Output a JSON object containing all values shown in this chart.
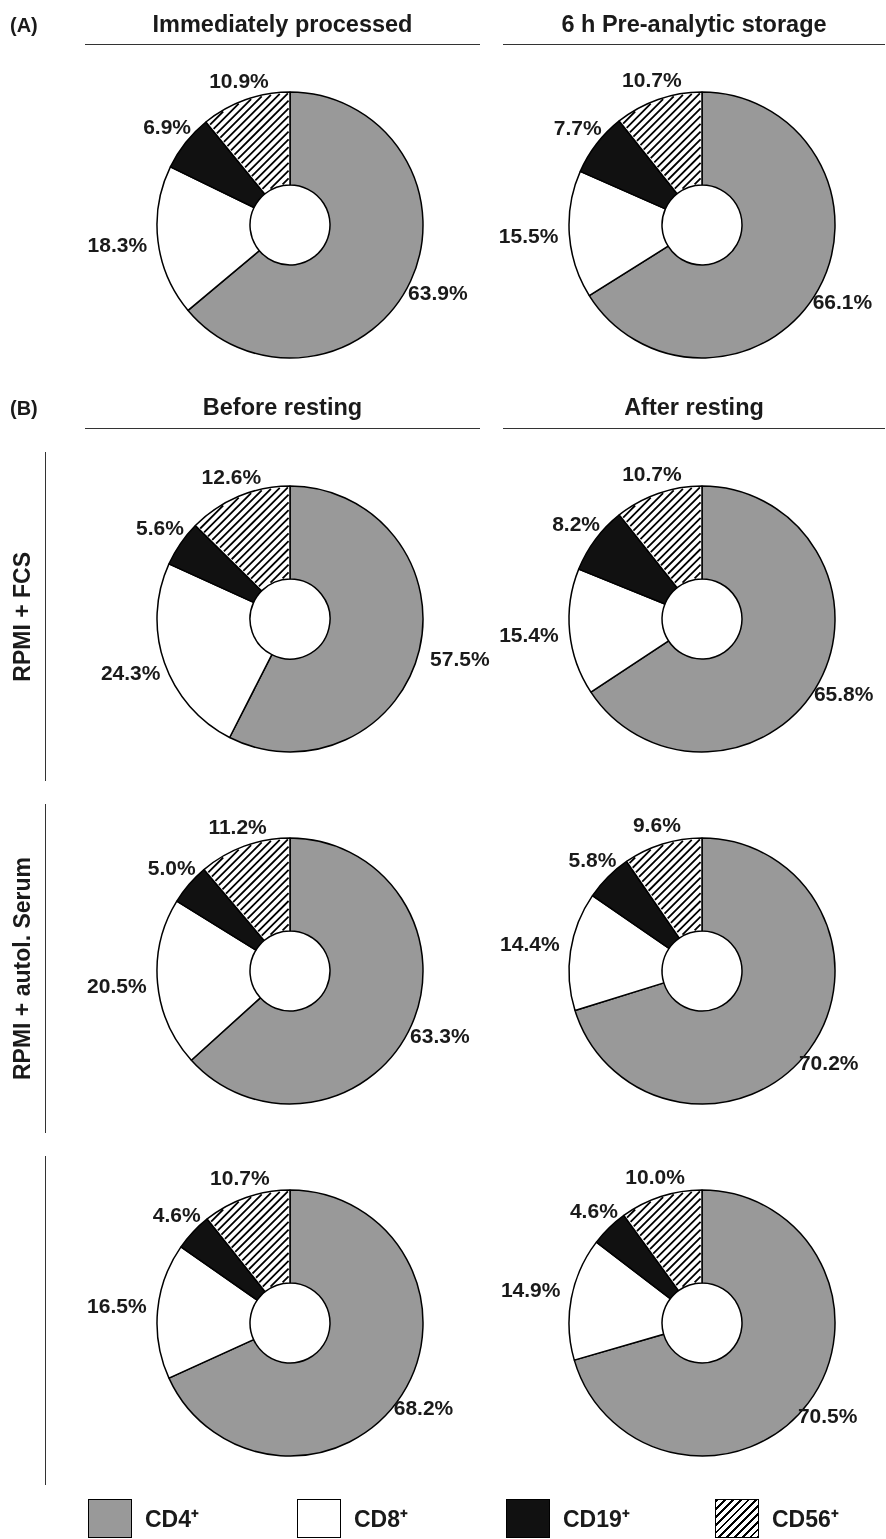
{
  "chart_data": [
    {
      "type": "donut",
      "title": "Immediately processed",
      "annotations": [
        "(A)"
      ],
      "categories": [
        null,
        null,
        null,
        null
      ],
      "values": [
        63.9,
        18.3,
        6.9,
        10.9
      ],
      "colors": [
        "#999999",
        "#ffffff",
        "#111111",
        "#ffffff"
      ],
      "value_labels": [
        "63.9%",
        "18.3%",
        "6.9%",
        "10.9%"
      ]
    },
    {
      "type": "donut",
      "title": "6 h Pre-analytic storage",
      "categories": [
        null,
        null,
        null,
        null
      ],
      "values": [
        66.1,
        15.5,
        7.7,
        10.7
      ],
      "colors": [
        "#999999",
        "#ffffff",
        "#111111",
        "#ffffff"
      ],
      "value_labels": [
        "66.1%",
        "15.5%",
        "7.7%",
        "10.7%"
      ]
    },
    {
      "type": "donut",
      "title": "Before resting",
      "ylabel": "RPMI + FCS",
      "annotations": [
        "(B)"
      ],
      "categories": [
        null,
        null,
        null,
        null
      ],
      "values": [
        57.5,
        24.3,
        5.6,
        12.6
      ],
      "colors": [
        "#999999",
        "#ffffff",
        "#111111",
        "#ffffff"
      ],
      "value_labels": [
        "57.5%",
        "24.3%",
        "5.6%",
        "12.6%"
      ]
    },
    {
      "type": "donut",
      "title": "After resting",
      "categories": [
        null,
        null,
        null,
        null
      ],
      "values": [
        65.8,
        15.4,
        8.2,
        10.7
      ],
      "colors": [
        "#999999",
        "#ffffff",
        "#111111",
        "#ffffff"
      ],
      "value_labels": [
        "65.8%",
        "15.4%",
        "8.2%",
        "10.7%"
      ]
    },
    {
      "type": "donut",
      "ylabel": "RPMI + autol. Serum",
      "categories": [
        null,
        null,
        null,
        null
      ],
      "values": [
        63.3,
        20.5,
        5.0,
        11.2
      ],
      "colors": [
        "#999999",
        "#ffffff",
        "#111111",
        "#ffffff"
      ],
      "value_labels": [
        "63.3%",
        "20.5%",
        "5.0%",
        "11.2%"
      ]
    },
    {
      "type": "donut",
      "categories": [
        null,
        null,
        null,
        null
      ],
      "values": [
        70.2,
        14.4,
        5.8,
        9.6
      ],
      "colors": [
        "#999999",
        "#ffffff",
        "#111111",
        "#ffffff"
      ],
      "value_labels": [
        "70.2%",
        "14.4%",
        "5.8%",
        "9.6%"
      ]
    },
    {
      "type": "donut",
      "categories": [
        null,
        null,
        null,
        null
      ],
      "values": [
        68.2,
        16.5,
        4.6,
        10.7
      ],
      "colors": [
        "#999999",
        "#ffffff",
        "#111111",
        "#ffffff"
      ],
      "value_labels": [
        "68.2%",
        "16.5%",
        "4.6%",
        "10.7%"
      ]
    },
    {
      "type": "donut",
      "categories": [
        "CD4⁺",
        "CD8⁺",
        "CD19⁺",
        "CD56⁺"
      ],
      "values": [
        70.5,
        14.9,
        4.6,
        10.0
      ],
      "colors": [
        "#999999",
        "#ffffff",
        "#111111",
        "#ffffff"
      ],
      "value_labels": [
        "70.5%",
        "14.9%",
        "4.6%",
        "10.0%"
      ],
      "legend": "bottom"
    }
  ]
}
